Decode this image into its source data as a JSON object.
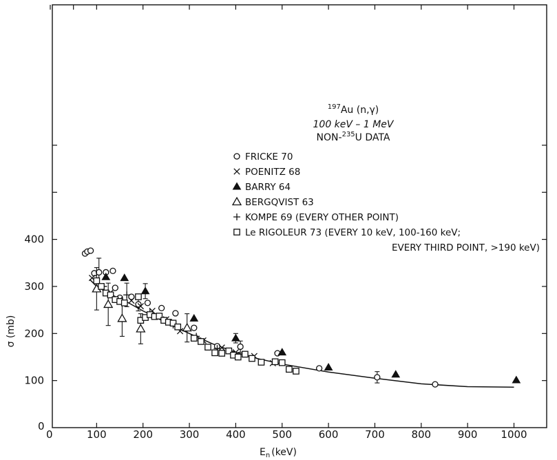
{
  "chart_data": {
    "type": "scatter",
    "annotation": {
      "iso_mass": "197",
      "reaction": "Au (n,γ)",
      "range": "100 keV – 1 MeV",
      "data_prefix": "NON-",
      "data_iso": "235",
      "data_suffix": "U DATA"
    },
    "xlabel": "E",
    "xlabel_sub": "n",
    "xlabel_unit": "(keV)",
    "ylabel": "σ (mb)",
    "xlim": [
      0,
      1080
    ],
    "ylim": [
      0,
      470
    ],
    "x_ticks": [
      100,
      200,
      300,
      400,
      500,
      600,
      700,
      800,
      900,
      1000
    ],
    "x_tick_labels": [
      "100",
      "200",
      "300",
      "400",
      "500",
      "600",
      "700",
      "800",
      "900",
      "1000"
    ],
    "y_ticks": [
      100,
      200,
      300,
      400
    ],
    "y_tick_labels": [
      "100",
      "200",
      "300",
      "400"
    ],
    "origin_x_label": "0",
    "origin_y_label": "0",
    "legend": [
      {
        "marker": "circle-open",
        "label": "FRICKE 70"
      },
      {
        "marker": "cross",
        "label": "POENITZ 68"
      },
      {
        "marker": "triangle-filled",
        "label": "BARRY 64"
      },
      {
        "marker": "triangle-open",
        "label": "BERGQVIST 63"
      },
      {
        "marker": "plus",
        "label": "KOMPE 69 (EVERY OTHER POINT)"
      },
      {
        "marker": "square-open",
        "label": "Le RIGOLEUR 73 (EVERY 10 keV, 100-160 keV;",
        "label_line2": "EVERY THIRD POINT, >190 keV)"
      }
    ],
    "fit_curve": {
      "x": [
        85,
        100,
        130,
        160,
        200,
        250,
        300,
        350,
        400,
        450,
        500,
        600,
        700,
        800,
        900,
        1000
      ],
      "y": [
        315,
        300,
        283,
        270,
        248,
        223,
        200,
        178,
        160,
        146,
        135,
        118,
        105,
        93,
        87,
        86
      ]
    },
    "series": [
      {
        "marker": "circle-open",
        "points": [
          {
            "x": 75,
            "y": 370
          },
          {
            "x": 80,
            "y": 374
          },
          {
            "x": 87,
            "y": 376
          },
          {
            "x": 95,
            "y": 328
          },
          {
            "x": 105,
            "y": 330,
            "err": 30
          },
          {
            "x": 120,
            "y": 330
          },
          {
            "x": 135,
            "y": 333
          },
          {
            "x": 140,
            "y": 297
          },
          {
            "x": 150,
            "y": 276
          },
          {
            "x": 175,
            "y": 278
          },
          {
            "x": 190,
            "y": 262,
            "err": 14
          },
          {
            "x": 210,
            "y": 265
          },
          {
            "x": 240,
            "y": 254
          },
          {
            "x": 270,
            "y": 243
          },
          {
            "x": 310,
            "y": 212
          },
          {
            "x": 360,
            "y": 173
          },
          {
            "x": 410,
            "y": 172,
            "err": 12
          },
          {
            "x": 490,
            "y": 158
          },
          {
            "x": 580,
            "y": 126
          },
          {
            "x": 705,
            "y": 107,
            "err": 12
          },
          {
            "x": 830,
            "y": 92
          }
        ]
      },
      {
        "marker": "cross",
        "points": [
          {
            "x": 90,
            "y": 318
          },
          {
            "x": 110,
            "y": 297
          },
          {
            "x": 130,
            "y": 287
          },
          {
            "x": 150,
            "y": 272
          },
          {
            "x": 175,
            "y": 270
          },
          {
            "x": 195,
            "y": 258
          },
          {
            "x": 220,
            "y": 248
          },
          {
            "x": 250,
            "y": 230
          },
          {
            "x": 280,
            "y": 205
          },
          {
            "x": 330,
            "y": 185
          },
          {
            "x": 370,
            "y": 170
          },
          {
            "x": 400,
            "y": 160
          },
          {
            "x": 440,
            "y": 152
          },
          {
            "x": 480,
            "y": 137
          }
        ]
      },
      {
        "marker": "triangle-filled",
        "points": [
          {
            "x": 120,
            "y": 320
          },
          {
            "x": 160,
            "y": 318
          },
          {
            "x": 205,
            "y": 290,
            "err": 16
          },
          {
            "x": 310,
            "y": 232
          },
          {
            "x": 400,
            "y": 190,
            "err": 10
          },
          {
            "x": 500,
            "y": 160
          },
          {
            "x": 600,
            "y": 128
          },
          {
            "x": 745,
            "y": 113
          },
          {
            "x": 1005,
            "y": 101
          }
        ]
      },
      {
        "marker": "triangle-open",
        "points": [
          {
            "x": 100,
            "y": 295,
            "err": 45
          },
          {
            "x": 125,
            "y": 262,
            "err": 45
          },
          {
            "x": 155,
            "y": 232,
            "err": 38
          },
          {
            "x": 195,
            "y": 210,
            "err": 32
          },
          {
            "x": 295,
            "y": 212,
            "err": 30
          }
        ]
      },
      {
        "marker": "plus",
        "points": [
          {
            "x": 115,
            "y": 300
          },
          {
            "x": 165,
            "y": 282,
            "err": 25
          },
          {
            "x": 215,
            "y": 245
          },
          {
            "x": 265,
            "y": 218
          },
          {
            "x": 315,
            "y": 194
          },
          {
            "x": 360,
            "y": 168
          }
        ]
      },
      {
        "marker": "square-open",
        "points": [
          {
            "x": 100,
            "y": 312
          },
          {
            "x": 110,
            "y": 300
          },
          {
            "x": 120,
            "y": 286
          },
          {
            "x": 130,
            "y": 282
          },
          {
            "x": 140,
            "y": 272
          },
          {
            "x": 150,
            "y": 268
          },
          {
            "x": 160,
            "y": 265
          },
          {
            "x": 190,
            "y": 278
          },
          {
            "x": 195,
            "y": 228
          },
          {
            "x": 205,
            "y": 234
          },
          {
            "x": 215,
            "y": 240
          },
          {
            "x": 225,
            "y": 236
          },
          {
            "x": 235,
            "y": 237
          },
          {
            "x": 245,
            "y": 228
          },
          {
            "x": 255,
            "y": 224
          },
          {
            "x": 265,
            "y": 222
          },
          {
            "x": 275,
            "y": 214
          },
          {
            "x": 310,
            "y": 190
          },
          {
            "x": 325,
            "y": 183
          },
          {
            "x": 340,
            "y": 171
          },
          {
            "x": 355,
            "y": 159
          },
          {
            "x": 370,
            "y": 158
          },
          {
            "x": 385,
            "y": 163
          },
          {
            "x": 395,
            "y": 154
          },
          {
            "x": 405,
            "y": 150
          },
          {
            "x": 420,
            "y": 156
          },
          {
            "x": 435,
            "y": 147
          },
          {
            "x": 455,
            "y": 139
          },
          {
            "x": 485,
            "y": 140
          },
          {
            "x": 500,
            "y": 138
          },
          {
            "x": 515,
            "y": 124
          },
          {
            "x": 530,
            "y": 120
          }
        ]
      }
    ]
  }
}
